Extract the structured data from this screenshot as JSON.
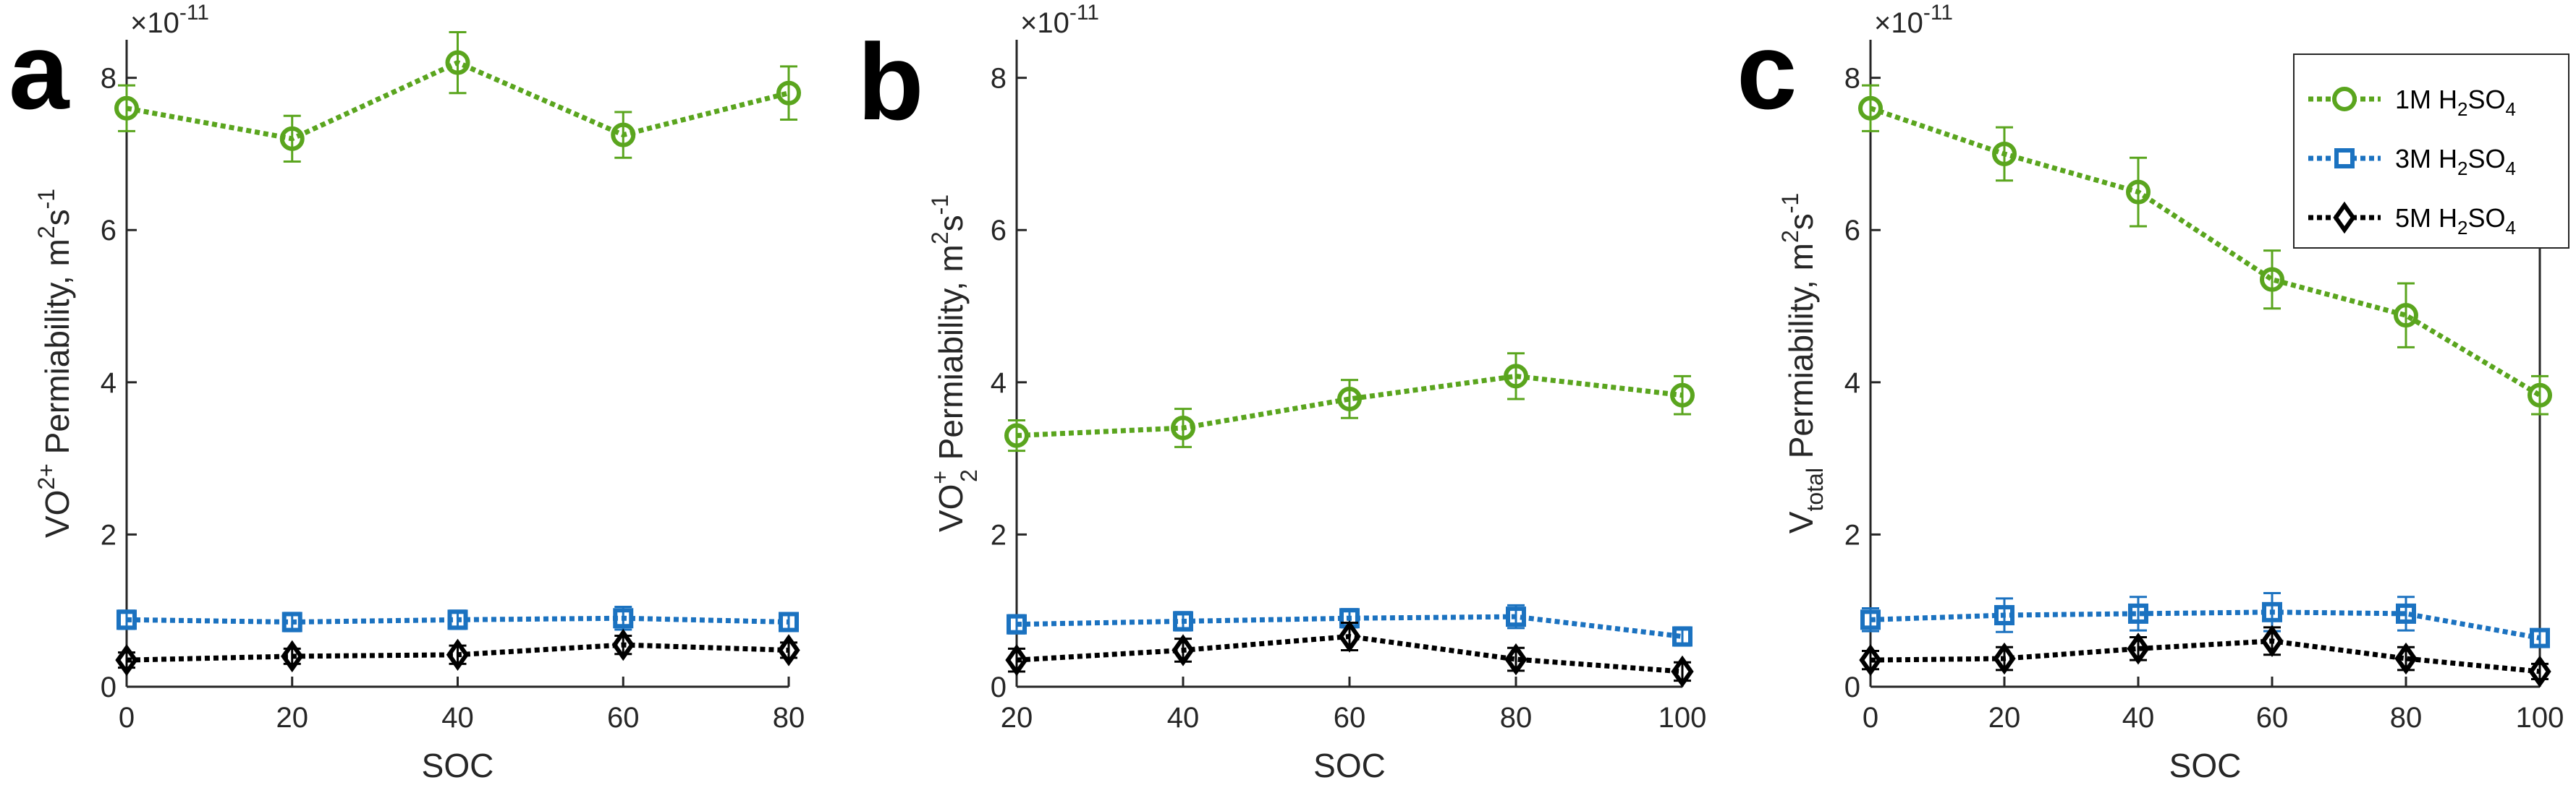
{
  "chart_data": [
    {
      "type": "line",
      "panel_label": "a",
      "xlabel": "SOC",
      "ylabel": {
        "base": "VO",
        "sup": "2+",
        "suffix": " Permiability,  m",
        "unit_sup": "2",
        "unit_mid": "s",
        "unit_sup2": "-1"
      },
      "exponent_label": "×10",
      "exponent_sup": "-11",
      "xlim": [
        0,
        80
      ],
      "ylim": [
        0,
        8.5
      ],
      "xticks": [
        0,
        20,
        40,
        60,
        80
      ],
      "yticks": [
        0,
        2,
        4,
        6,
        8
      ],
      "x": [
        0,
        20,
        40,
        60,
        80
      ],
      "series": [
        {
          "name": "1M H2SO4",
          "color": "#5aa51e",
          "marker": "circle",
          "values": [
            7.6,
            7.2,
            8.2,
            7.25,
            7.8
          ],
          "errors": [
            0.3,
            0.3,
            0.4,
            0.3,
            0.35
          ]
        },
        {
          "name": "3M H2SO4",
          "color": "#1b72c0",
          "marker": "square",
          "values": [
            0.88,
            0.85,
            0.88,
            0.9,
            0.85
          ],
          "errors": [
            0.12,
            0.12,
            0.12,
            0.15,
            0.1
          ]
        },
        {
          "name": "5M H2SO4",
          "color": "#000000",
          "marker": "diamond",
          "values": [
            0.35,
            0.4,
            0.42,
            0.55,
            0.48
          ],
          "errors": [
            0.1,
            0.1,
            0.12,
            0.12,
            0.1
          ]
        }
      ]
    },
    {
      "type": "line",
      "panel_label": "b",
      "xlabel": "SOC",
      "ylabel": {
        "base": "VO",
        "sup": "+",
        "sub": "2",
        "suffix": " Permiability,  m",
        "unit_sup": "2",
        "unit_mid": "s",
        "unit_sup2": "-1"
      },
      "exponent_label": "×10",
      "exponent_sup": "-11",
      "xlim": [
        20,
        100
      ],
      "ylim": [
        0,
        8.5
      ],
      "xticks": [
        20,
        40,
        60,
        80,
        100
      ],
      "yticks": [
        0,
        2,
        4,
        6,
        8
      ],
      "x": [
        20,
        40,
        60,
        80,
        100
      ],
      "series": [
        {
          "name": "1M H2SO4",
          "color": "#5aa51e",
          "marker": "circle",
          "values": [
            3.3,
            3.4,
            3.78,
            4.08,
            3.83
          ],
          "errors": [
            0.2,
            0.25,
            0.25,
            0.3,
            0.25
          ]
        },
        {
          "name": "3M H2SO4",
          "color": "#1b72c0",
          "marker": "square",
          "values": [
            0.82,
            0.86,
            0.9,
            0.92,
            0.66
          ],
          "errors": [
            0.12,
            0.12,
            0.12,
            0.15,
            0.12
          ]
        },
        {
          "name": "5M H2SO4",
          "color": "#000000",
          "marker": "diamond",
          "values": [
            0.35,
            0.48,
            0.66,
            0.36,
            0.2
          ],
          "errors": [
            0.15,
            0.15,
            0.18,
            0.15,
            0.12
          ]
        }
      ]
    },
    {
      "type": "line",
      "panel_label": "c",
      "xlabel": "SOC",
      "ylabel": {
        "base": "V",
        "sub": "total",
        "suffix": " Permiability,  m",
        "unit_sup": "2",
        "unit_mid": "s",
        "unit_sup2": "-1"
      },
      "exponent_label": "×10",
      "exponent_sup": "-11",
      "xlim": [
        0,
        100
      ],
      "ylim": [
        0,
        8.5
      ],
      "xticks": [
        0,
        20,
        40,
        60,
        80,
        100
      ],
      "yticks": [
        0,
        2,
        4,
        6,
        8
      ],
      "x": [
        0,
        20,
        40,
        60,
        80,
        100
      ],
      "series": [
        {
          "name": "1M H2SO4",
          "color": "#5aa51e",
          "marker": "circle",
          "values": [
            7.6,
            7.0,
            6.5,
            5.35,
            4.88,
            3.83
          ],
          "errors": [
            0.3,
            0.35,
            0.45,
            0.38,
            0.42,
            0.25
          ]
        },
        {
          "name": "3M H2SO4",
          "color": "#1b72c0",
          "marker": "square",
          "values": [
            0.88,
            0.94,
            0.96,
            0.98,
            0.96,
            0.64
          ],
          "errors": [
            0.15,
            0.22,
            0.22,
            0.25,
            0.22,
            0.1
          ]
        },
        {
          "name": "5M H2SO4",
          "color": "#000000",
          "marker": "diamond",
          "values": [
            0.35,
            0.37,
            0.5,
            0.6,
            0.37,
            0.2
          ],
          "errors": [
            0.12,
            0.15,
            0.15,
            0.18,
            0.15,
            0.1
          ]
        }
      ]
    }
  ],
  "legend": {
    "position": "top-right",
    "entries": [
      {
        "prefix": "1M H",
        "sub1": "2",
        "mid": "SO",
        "sub2": "4"
      },
      {
        "prefix": "3M H",
        "sub1": "2",
        "mid": "SO",
        "sub2": "4"
      },
      {
        "prefix": "5M H",
        "sub1": "2",
        "mid": "SO",
        "sub2": "4"
      }
    ]
  }
}
